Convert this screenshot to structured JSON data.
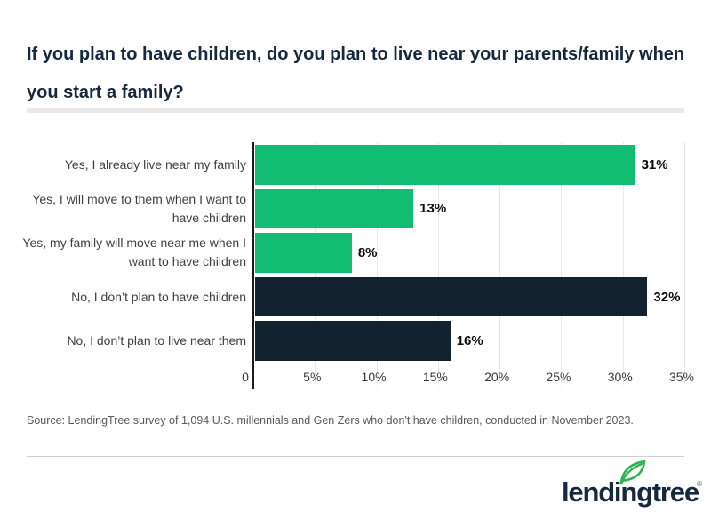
{
  "title": "If you plan to have children, do you plan to live near your parents/family when you start a family?",
  "source": "Source: LendingTree survey of 1,094 U.S. millennials and Gen Zers who don't have children, conducted in November 2023.",
  "logo": {
    "text": "lendingtree",
    "registered_mark": "®"
  },
  "colors": {
    "background": "#FFFFFF",
    "green": "#10BD73",
    "navy": "#13222F",
    "title_text": "#16283E",
    "category_text": "#3F3F3F",
    "value_text": "#0D0D0D",
    "tick_text": "#3A3A3A",
    "gridline": "#E7E7E7",
    "axis": "#1A1A1A",
    "divider_thick": "#E9E9E9",
    "divider_thin": "#CFCFCF",
    "leaf_green": "#2DB353"
  },
  "chart_data": {
    "type": "bar",
    "orientation": "horizontal",
    "title": "If you plan to have children, do you plan to live near your parents/family when you start a family?",
    "categories": [
      "Yes, I already live near my family",
      "Yes, I will move to them when I want to have children",
      "Yes, my family will move near me when I want to have children",
      "No, I don’t plan to have children",
      "No, I don’t plan to live near them"
    ],
    "values": [
      31,
      13,
      8,
      32,
      16
    ],
    "value_labels": [
      "31%",
      "13%",
      "8%",
      "32%",
      "16%"
    ],
    "bar_colors": [
      "green",
      "green",
      "green",
      "navy",
      "navy"
    ],
    "xlabel": "",
    "ylabel": "",
    "xlim": [
      0,
      35
    ],
    "x_ticks": [
      "0",
      "5%",
      "10%",
      "15%",
      "20%",
      "25%",
      "30%",
      "35%"
    ],
    "x_tick_values": [
      0,
      5,
      10,
      15,
      20,
      25,
      30,
      35
    ],
    "grid": "vertical",
    "legend": "none",
    "value_label_position": "outside-end"
  }
}
